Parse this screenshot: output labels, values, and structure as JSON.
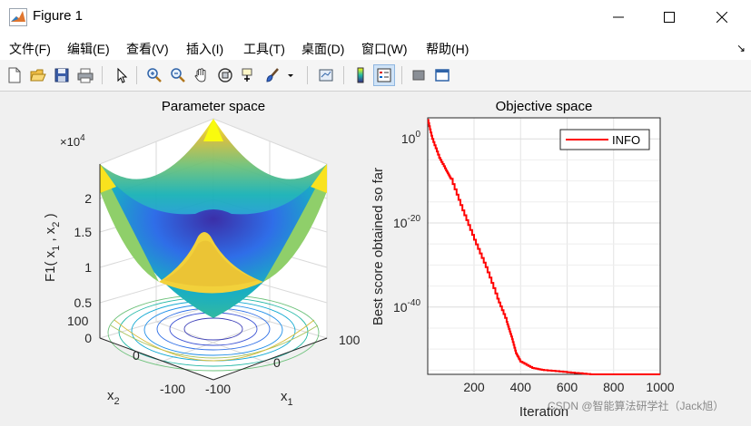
{
  "window": {
    "title": "Figure 1"
  },
  "menu": [
    {
      "label": "文件(F)"
    },
    {
      "label": "编辑(E)"
    },
    {
      "label": "查看(V)"
    },
    {
      "label": "插入(I)"
    },
    {
      "label": "工具(T)"
    },
    {
      "label": "桌面(D)"
    },
    {
      "label": "窗口(W)"
    },
    {
      "label": "帮助(H)"
    }
  ],
  "toolbar": {
    "icons": [
      "new-figure-icon",
      "open-file-icon",
      "save-icon",
      "print-icon",
      "edit-plot-icon",
      "zoom-in-icon",
      "zoom-out-icon",
      "pan-icon",
      "rotate-3d-icon",
      "data-cursor-icon",
      "brush-icon",
      "link-plot-icon",
      "colorbar-icon",
      "legend-icon",
      "hide-tools-icon",
      "show-tools-icon"
    ]
  },
  "left_plot": {
    "title": "Parameter space",
    "exponent_label": "×10",
    "exponent_value": "4",
    "zlabel": "F1( x",
    "zlabel_sub1": "1",
    "zlabel_mid": " , x",
    "zlabel_sub2": "2",
    "zlabel_end": " )",
    "xlabel": "x",
    "xlabel_sub": "1",
    "ylabel": "x",
    "ylabel_sub": "2",
    "zticks": [
      "0",
      "0.5",
      "1",
      "1.5",
      "2"
    ],
    "x1ticks": [
      "-100",
      "0",
      "100"
    ],
    "x2ticks": [
      "100",
      "0",
      "-100"
    ]
  },
  "right_plot": {
    "title": "Objective space",
    "xlabel": "Iteration",
    "ylabel": "Best score obtained so far",
    "legend": "INFO",
    "line_color": "#ff0000",
    "watermark": "CSDN @智能算法研学社（Jack旭）"
  },
  "chart_data": [
    {
      "type": "surface",
      "title": "Parameter space",
      "function": "F1(x1,x2) = x1^2 + x2^2",
      "x1_range": [
        -100,
        100
      ],
      "x2_range": [
        -100,
        100
      ],
      "zlim": [
        0,
        20000
      ],
      "colormap": "parula",
      "contours": "projected on base"
    },
    {
      "type": "line",
      "title": "Objective space",
      "xlabel": "Iteration",
      "ylabel": "Best score obtained so far",
      "yscale": "log",
      "xlim": [
        1,
        1000
      ],
      "ylim_exponent": [
        -56,
        5
      ],
      "xticks": [
        200,
        400,
        600,
        800,
        1000
      ],
      "yticks": [
        "10^0",
        "10^-20",
        "10^-40"
      ],
      "legend_position": "top-right",
      "grid": true,
      "series": [
        {
          "name": "INFO",
          "color": "#ff0000",
          "x": [
            1,
            20,
            50,
            80,
            100,
            150,
            200,
            250,
            300,
            340,
            360,
            380,
            400,
            450,
            500,
            600,
            700,
            800,
            900,
            1000
          ],
          "log10_y": [
            4.5,
            0,
            -4.5,
            -7.5,
            -9.5,
            -17,
            -24,
            -30.5,
            -38,
            -43.5,
            -47,
            -51,
            -53,
            -54.5,
            -55,
            -55.5,
            -56,
            -56.3,
            -56.6,
            -57
          ]
        }
      ]
    }
  ]
}
